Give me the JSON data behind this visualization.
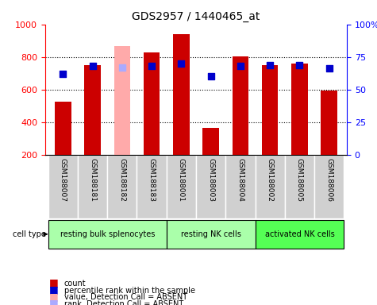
{
  "title": "GDS2957 / 1440465_at",
  "samples": [
    "GSM188007",
    "GSM188181",
    "GSM188182",
    "GSM188183",
    "GSM188001",
    "GSM188003",
    "GSM188004",
    "GSM188002",
    "GSM188005",
    "GSM188006"
  ],
  "counts": [
    525,
    748,
    869,
    830,
    940,
    365,
    805,
    748,
    758,
    595
  ],
  "percentiles": [
    62,
    68,
    67,
    68,
    70,
    60,
    68,
    69,
    69,
    66
  ],
  "absent": [
    false,
    false,
    true,
    false,
    false,
    false,
    false,
    false,
    false,
    false
  ],
  "bar_color_present": "#cc0000",
  "bar_color_absent": "#ffaaaa",
  "dot_color_present": "#0000cc",
  "dot_color_absent": "#aaaaff",
  "ylim_left": [
    200,
    1000
  ],
  "ylim_right": [
    0,
    100
  ],
  "yticks_left": [
    200,
    400,
    600,
    800,
    1000
  ],
  "yticks_right": [
    0,
    25,
    50,
    75,
    100
  ],
  "ytick_labels_right": [
    "0",
    "25",
    "50",
    "75",
    "100%"
  ],
  "grid_values": [
    400,
    600,
    800
  ],
  "plot_bg_color": "#ffffff",
  "bar_width": 0.55,
  "dot_size": 40,
  "group_defs": [
    {
      "start": 0,
      "end": 3,
      "label": "resting bulk splenocytes",
      "color": "#aaffaa"
    },
    {
      "start": 4,
      "end": 6,
      "label": "resting NK cells",
      "color": "#aaffaa"
    },
    {
      "start": 7,
      "end": 9,
      "label": "activated NK cells",
      "color": "#55ff55"
    }
  ]
}
